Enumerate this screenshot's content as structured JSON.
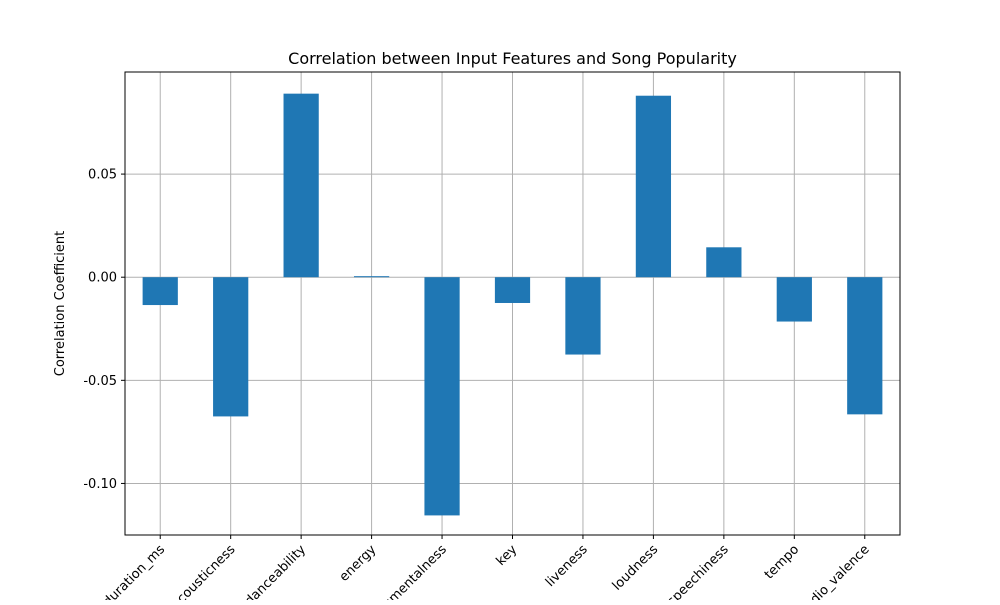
{
  "chart_data": {
    "type": "bar",
    "title": "Correlation between Input Features and Song Popularity",
    "xlabel": "",
    "ylabel": "Correlation Coefficient",
    "categories": [
      "duration_ms",
      "acousticness",
      "danceability",
      "energy",
      "instrumentalness",
      "key",
      "liveness",
      "loudness",
      "speechiness",
      "tempo",
      "audio_valence"
    ],
    "values": [
      -0.0135,
      -0.0675,
      0.089,
      0.0005,
      -0.1155,
      -0.0125,
      -0.0375,
      0.088,
      0.0145,
      -0.0215,
      -0.0665
    ],
    "yticks": [
      "-0.10",
      "-0.05",
      "0.00",
      "0.05"
    ],
    "ylim": [
      -0.125,
      0.0995
    ],
    "grid": true,
    "bar_color": "#1f77b4"
  }
}
